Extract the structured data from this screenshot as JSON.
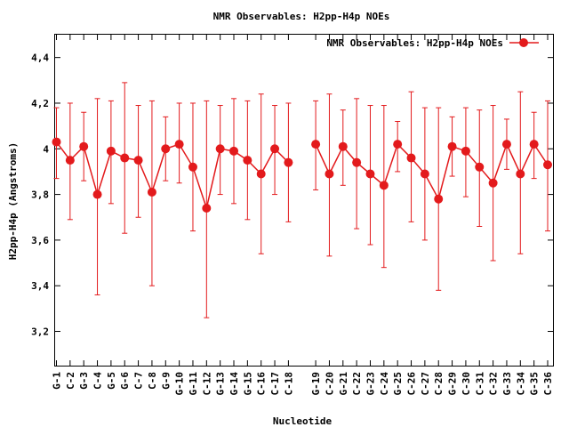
{
  "chart_data": {
    "type": "line",
    "title": "NMR Observables: H2pp-H4p NOEs",
    "xlabel": "Nucleotide",
    "ylabel": "H2pp-H4p (Angstroms)",
    "ylim": [
      3.05,
      4.5
    ],
    "yticks": [
      3.2,
      3.4,
      3.6,
      3.8,
      4,
      4.2,
      4.4
    ],
    "ytick_labels": [
      "3,2",
      "3,4",
      "3,6",
      "3,8",
      "4",
      "4,2",
      "4,4"
    ],
    "legend_position": "top-right",
    "color": "#e31a1c",
    "series": [
      {
        "name": "NMR Observables: H2pp-H4p NOEs",
        "segments": [
          {
            "categories": [
              "G-1",
              "C-2",
              "G-3",
              "C-4",
              "G-5",
              "G-6",
              "C-7",
              "C-8",
              "G-9",
              "G-10",
              "G-11",
              "C-12",
              "G-13",
              "G-14",
              "G-15",
              "C-16",
              "C-17",
              "C-18"
            ],
            "values": [
              4.03,
              3.95,
              4.01,
              3.8,
              3.99,
              3.96,
              3.95,
              3.81,
              4.0,
              4.02,
              3.92,
              3.74,
              4.0,
              3.99,
              3.95,
              3.89,
              4.0,
              3.94
            ],
            "err_low": [
              3.87,
              3.69,
              3.86,
              3.36,
              3.76,
              3.63,
              3.7,
              3.4,
              3.86,
              3.85,
              3.64,
              3.26,
              3.8,
              3.76,
              3.69,
              3.54,
              3.8,
              3.68
            ],
            "err_high": [
              4.18,
              4.2,
              4.16,
              4.22,
              4.21,
              4.29,
              4.19,
              4.21,
              4.14,
              4.2,
              4.2,
              4.21,
              4.19,
              4.22,
              4.21,
              4.24,
              4.19,
              4.2
            ]
          },
          {
            "categories": [
              "G-19",
              "C-20",
              "G-21",
              "C-22",
              "G-23",
              "C-24",
              "G-25",
              "C-26",
              "C-27",
              "C-28",
              "G-29",
              "C-30",
              "C-31",
              "C-32",
              "G-33",
              "C-34",
              "G-35",
              "C-36"
            ],
            "values": [
              4.02,
              3.89,
              4.01,
              3.94,
              3.89,
              3.84,
              4.02,
              3.96,
              3.89,
              3.78,
              4.01,
              3.99,
              3.92,
              3.85,
              4.02,
              3.89,
              4.02,
              3.93
            ],
            "err_low": [
              3.82,
              3.53,
              3.84,
              3.65,
              3.58,
              3.48,
              3.9,
              3.68,
              3.6,
              3.38,
              3.88,
              3.79,
              3.66,
              3.51,
              3.91,
              3.54,
              3.87,
              3.64
            ],
            "err_high": [
              4.21,
              4.24,
              4.17,
              4.22,
              4.19,
              4.19,
              4.12,
              4.25,
              4.18,
              4.18,
              4.14,
              4.18,
              4.17,
              4.19,
              4.13,
              4.25,
              4.16,
              4.21
            ]
          }
        ]
      }
    ]
  }
}
